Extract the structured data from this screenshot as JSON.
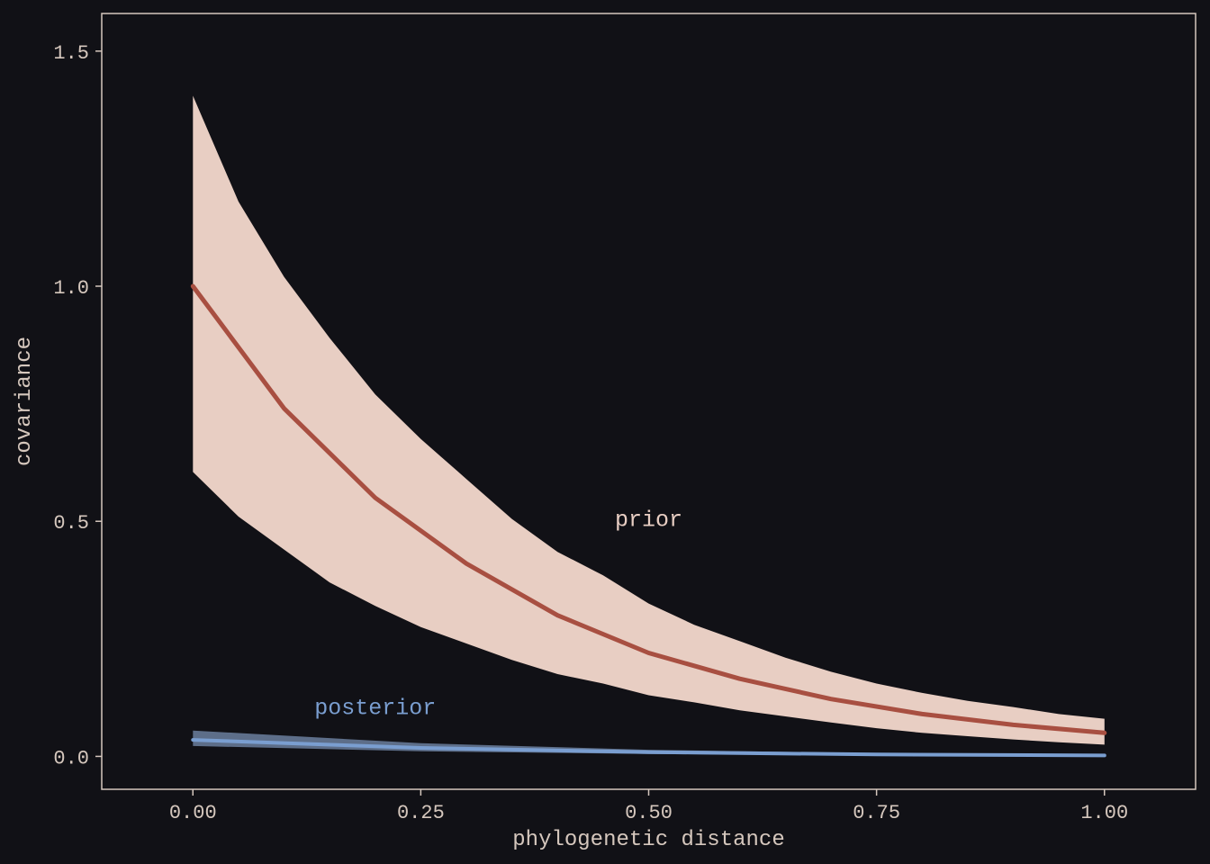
{
  "chart_data": {
    "type": "area",
    "title": "",
    "xlabel": "phylogenetic distance",
    "ylabel": "covariance",
    "xlim": [
      -0.1,
      1.1
    ],
    "ylim": [
      -0.07,
      1.58
    ],
    "x_ticks": [
      0.0,
      0.25,
      0.5,
      0.75,
      1.0
    ],
    "x_tick_labels": [
      "0.00",
      "0.25",
      "0.50",
      "0.75",
      "1.00"
    ],
    "y_ticks": [
      0.0,
      0.5,
      1.0,
      1.5
    ],
    "y_tick_labels": [
      "0.0",
      "0.5",
      "1.0",
      "1.5"
    ],
    "grid": false,
    "legend": "none",
    "series": [
      {
        "name": "prior",
        "mean": {
          "x": [
            0.0,
            0.1,
            0.2,
            0.3,
            0.4,
            0.5,
            0.6,
            0.7,
            0.8,
            0.9,
            1.0
          ],
          "y": [
            1.0,
            0.74,
            0.55,
            0.41,
            0.3,
            0.22,
            0.165,
            0.122,
            0.09,
            0.067,
            0.05
          ]
        },
        "band": {
          "x": [
            0.0,
            0.05,
            0.1,
            0.15,
            0.2,
            0.25,
            0.3,
            0.35,
            0.4,
            0.45,
            0.5,
            0.55,
            0.6,
            0.65,
            0.7,
            0.75,
            0.8,
            0.85,
            0.9,
            0.95,
            1.0
          ],
          "lower": [
            0.605,
            0.51,
            0.44,
            0.37,
            0.32,
            0.275,
            0.24,
            0.205,
            0.175,
            0.155,
            0.13,
            0.115,
            0.098,
            0.085,
            0.072,
            0.06,
            0.05,
            0.043,
            0.036,
            0.03,
            0.025
          ],
          "upper": [
            1.405,
            1.18,
            1.02,
            0.89,
            0.77,
            0.675,
            0.59,
            0.505,
            0.435,
            0.385,
            0.325,
            0.28,
            0.245,
            0.21,
            0.18,
            0.155,
            0.135,
            0.118,
            0.105,
            0.09,
            0.08
          ]
        },
        "color": "#a84f41",
        "band_color": "#e8cec3"
      },
      {
        "name": "posterior",
        "mean": {
          "x": [
            0.0,
            0.25,
            0.5,
            0.75,
            1.0
          ],
          "y": [
            0.035,
            0.018,
            0.009,
            0.004,
            0.002
          ]
        },
        "band": {
          "x": [
            0.0,
            0.25,
            0.5,
            0.75,
            1.0
          ],
          "lower": [
            0.022,
            0.011,
            0.005,
            0.002,
            0.0
          ],
          "upper": [
            0.055,
            0.028,
            0.014,
            0.007,
            0.004
          ]
        },
        "color": "#7a9ed0",
        "band_color": "#6b7f9e"
      }
    ],
    "annotations": [
      {
        "text": "prior",
        "x": 0.5,
        "y": 0.49,
        "color": "#e8cec3"
      },
      {
        "text": "posterior",
        "x": 0.2,
        "y": 0.09,
        "color": "#7a9ed0"
      }
    ],
    "colors": {
      "background": "#111116",
      "frame": "#d5c7bd",
      "text": "#d5c7bd"
    }
  }
}
